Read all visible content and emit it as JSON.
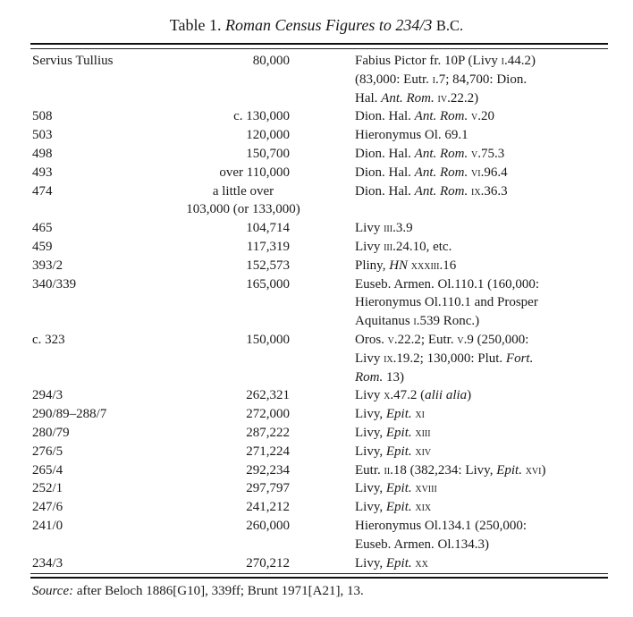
{
  "title": {
    "prefix": "Table 1. ",
    "italic": "Roman Census Figures to 234/3",
    "suffix": "B.C."
  },
  "rows": [
    {
      "year": "Servius Tullius",
      "figure": [
        "80,000"
      ],
      "source": [
        [
          {
            "t": "Fabius Pictor fr. 10P (Livy "
          },
          {
            "t": "i",
            "sc": true
          },
          {
            "t": ".44.2)"
          }
        ],
        [
          {
            "t": "(83,000: Eutr. "
          },
          {
            "t": "i",
            "sc": true
          },
          {
            "t": ".7; 84,700: Dion."
          }
        ],
        [
          {
            "t": "Hal. "
          },
          {
            "t": "Ant. Rom.",
            "i": true
          },
          {
            "t": " "
          },
          {
            "t": "iv",
            "sc": true
          },
          {
            "t": ".22.2)"
          }
        ]
      ]
    },
    {
      "year": "508",
      "figure": [
        "c. 130,000"
      ],
      "source": [
        [
          {
            "t": "Dion. Hal. "
          },
          {
            "t": "Ant. Rom.",
            "i": true
          },
          {
            "t": " "
          },
          {
            "t": "v",
            "sc": true
          },
          {
            "t": ".20"
          }
        ]
      ]
    },
    {
      "year": "503",
      "figure": [
        "120,000"
      ],
      "source": [
        [
          {
            "t": "Hieronymus Ol. 69.1"
          }
        ]
      ]
    },
    {
      "year": "498",
      "figure": [
        "150,700"
      ],
      "source": [
        [
          {
            "t": "Dion. Hal. "
          },
          {
            "t": "Ant. Rom.",
            "i": true
          },
          {
            "t": " "
          },
          {
            "t": "v",
            "sc": true
          },
          {
            "t": ".75.3"
          }
        ]
      ]
    },
    {
      "year": "493",
      "figure": [
        "over 110,000"
      ],
      "source": [
        [
          {
            "t": "Dion. Hal. "
          },
          {
            "t": "Ant. Rom.",
            "i": true
          },
          {
            "t": " "
          },
          {
            "t": "vi",
            "sc": true
          },
          {
            "t": ".96.4"
          }
        ]
      ]
    },
    {
      "year": "474",
      "figure": [
        "a little over",
        "103,000 (or 133,000)"
      ],
      "center": true,
      "source": [
        [
          {
            "t": "Dion. Hal. "
          },
          {
            "t": "Ant. Rom.",
            "i": true
          },
          {
            "t": " "
          },
          {
            "t": "ix",
            "sc": true
          },
          {
            "t": ".36.3"
          }
        ]
      ]
    },
    {
      "year": "465",
      "figure": [
        "104,714"
      ],
      "source": [
        [
          {
            "t": "Livy "
          },
          {
            "t": "iii",
            "sc": true
          },
          {
            "t": ".3.9"
          }
        ]
      ]
    },
    {
      "year": "459",
      "figure": [
        "117,319"
      ],
      "source": [
        [
          {
            "t": "Livy "
          },
          {
            "t": "iii",
            "sc": true
          },
          {
            "t": ".24.10, etc."
          }
        ]
      ]
    },
    {
      "year": "393/2",
      "figure": [
        "152,573"
      ],
      "source": [
        [
          {
            "t": "Pliny, "
          },
          {
            "t": "HN",
            "i": true
          },
          {
            "t": " "
          },
          {
            "t": "xxxiii",
            "sc": true
          },
          {
            "t": ".16"
          }
        ]
      ]
    },
    {
      "year": "340/339",
      "figure": [
        "165,000"
      ],
      "source": [
        [
          {
            "t": "Euseb. Armen. Ol.110.1 (160,000:"
          }
        ],
        [
          {
            "t": "Hieronymus Ol.110.1 and Prosper"
          }
        ],
        [
          {
            "t": "Aquitanus "
          },
          {
            "t": "i",
            "sc": true
          },
          {
            "t": ".539 Ronc.)"
          }
        ]
      ]
    },
    {
      "year": "c. 323",
      "figure": [
        "150,000"
      ],
      "source": [
        [
          {
            "t": "Oros. "
          },
          {
            "t": "v",
            "sc": true
          },
          {
            "t": ".22.2; Eutr. "
          },
          {
            "t": "v",
            "sc": true
          },
          {
            "t": ".9 (250,000:"
          }
        ],
        [
          {
            "t": "Livy "
          },
          {
            "t": "ix",
            "sc": true
          },
          {
            "t": ".19.2; 130,000: Plut. "
          },
          {
            "t": "Fort.",
            "i": true
          }
        ],
        [
          {
            "t": "Rom.",
            "i": true
          },
          {
            "t": " 13)"
          }
        ]
      ]
    },
    {
      "year": "294/3",
      "figure": [
        "262,321"
      ],
      "source": [
        [
          {
            "t": "Livy "
          },
          {
            "t": "x",
            "sc": true
          },
          {
            "t": ".47.2 ("
          },
          {
            "t": "alii alia",
            "i": true
          },
          {
            "t": ")"
          }
        ]
      ]
    },
    {
      "year": "290/89–288/7",
      "figure": [
        "272,000"
      ],
      "source": [
        [
          {
            "t": "Livy, "
          },
          {
            "t": "Epit.",
            "i": true
          },
          {
            "t": " "
          },
          {
            "t": "xi",
            "sc": true
          }
        ]
      ]
    },
    {
      "year": "280/79",
      "figure": [
        "287,222"
      ],
      "source": [
        [
          {
            "t": "Livy, "
          },
          {
            "t": "Epit.",
            "i": true
          },
          {
            "t": " "
          },
          {
            "t": "xiii",
            "sc": true
          }
        ]
      ]
    },
    {
      "year": "276/5",
      "figure": [
        "271,224"
      ],
      "source": [
        [
          {
            "t": "Livy, "
          },
          {
            "t": "Epit.",
            "i": true
          },
          {
            "t": " "
          },
          {
            "t": "xiv",
            "sc": true
          }
        ]
      ]
    },
    {
      "year": "265/4",
      "figure": [
        "292,234"
      ],
      "source": [
        [
          {
            "t": "Eutr. "
          },
          {
            "t": "ii",
            "sc": true
          },
          {
            "t": ".18 (382,234: Livy, "
          },
          {
            "t": "Epit.",
            "i": true
          },
          {
            "t": " "
          },
          {
            "t": "xvi",
            "sc": true
          },
          {
            "t": ")"
          }
        ]
      ]
    },
    {
      "year": "252/1",
      "figure": [
        "297,797"
      ],
      "source": [
        [
          {
            "t": "Livy, "
          },
          {
            "t": "Epit.",
            "i": true
          },
          {
            "t": " "
          },
          {
            "t": "xviii",
            "sc": true
          }
        ]
      ]
    },
    {
      "year": "247/6",
      "figure": [
        "241,212"
      ],
      "source": [
        [
          {
            "t": "Livy, "
          },
          {
            "t": "Epit.",
            "i": true
          },
          {
            "t": " "
          },
          {
            "t": "xix",
            "sc": true
          }
        ]
      ]
    },
    {
      "year": "241/0",
      "figure": [
        "260,000"
      ],
      "source": [
        [
          {
            "t": "Hieronymus Ol.134.1 (250,000:"
          }
        ],
        [
          {
            "t": "Euseb. Armen. Ol.134.3)"
          }
        ]
      ]
    },
    {
      "year": "234/3",
      "figure": [
        "270,212"
      ],
      "source": [
        [
          {
            "t": "Livy, "
          },
          {
            "t": "Epit.",
            "i": true
          },
          {
            "t": " "
          },
          {
            "t": "xx",
            "sc": true
          }
        ]
      ]
    }
  ],
  "footnote": {
    "label": "Source:",
    "text": " after Beloch 1886[G10], 339ff; Brunt 1971[A21], 13."
  }
}
